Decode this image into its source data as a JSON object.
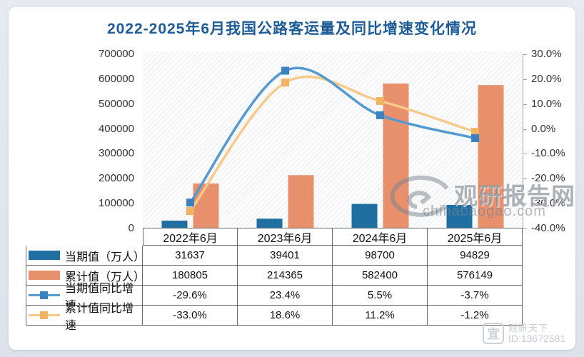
{
  "title": "2022-2025年6月我国公路客运量及同比增速变化情况",
  "colors": {
    "title": "#1d5b99",
    "bar_current": "#1f6fa3",
    "bar_cumulative": "#e8906c",
    "line_current": "#539ad3",
    "marker_current": "#3a82bd",
    "line_cumulative": "#f8ca8a",
    "marker_cumulative": "#f2b261",
    "axis": "#a6a6a6",
    "table_border": "#6a6a6a"
  },
  "chart_data": {
    "type": "combo-bar-line",
    "categories": [
      "2022年6月",
      "2023年6月",
      "2024年6月",
      "2025年6月"
    ],
    "bar_series": [
      {
        "name": "当期值（万人）",
        "values": [
          31637,
          39401,
          98700,
          94829
        ],
        "color": "#1f6fa3"
      },
      {
        "name": "累计值（万人）",
        "values": [
          180805,
          214365,
          582400,
          576149
        ],
        "color": "#e8906c"
      }
    ],
    "line_series": [
      {
        "name": "当期值同比增速",
        "values": [
          -29.6,
          23.4,
          5.5,
          -3.7
        ],
        "line_color": "#539ad3",
        "marker_color": "#3a82bd"
      },
      {
        "name": "累计值同比增速",
        "values": [
          -33.0,
          18.6,
          11.2,
          -1.2
        ],
        "line_color": "#f8ca8a",
        "marker_color": "#f2b261"
      }
    ],
    "left_axis": {
      "min": 0,
      "max": 700000,
      "ticks": [
        "700000",
        "600000",
        "500000",
        "400000",
        "300000",
        "200000",
        "100000",
        "0"
      ]
    },
    "right_axis": {
      "min": -40,
      "max": 30,
      "ticks": [
        "30.0%",
        "20.0%",
        "10.0%",
        "0.0%",
        "-10.0%",
        "-20.0%",
        "-30.0%",
        "-40.0%"
      ]
    },
    "grid": false,
    "legend_position": "table-left"
  },
  "table": {
    "rows": [
      {
        "swatch": "bar",
        "color": "#1f6fa3",
        "label": "当期值（万人）",
        "values": [
          "31637",
          "39401",
          "98700",
          "94829"
        ]
      },
      {
        "swatch": "bar",
        "color": "#e8906c",
        "label": "累计值（万人）",
        "values": [
          "180805",
          "214365",
          "582400",
          "576149"
        ]
      },
      {
        "swatch": "line",
        "line_color": "#539ad3",
        "marker_color": "#3a82bd",
        "label": "当期值同比增速",
        "values": [
          "-29.6%",
          "23.4%",
          "5.5%",
          "-3.7%"
        ]
      },
      {
        "swatch": "line",
        "line_color": "#f8ca8a",
        "marker_color": "#f2b261",
        "label": "累计值同比增速",
        "values": [
          "-33.0%",
          "18.6%",
          "11.2%",
          "-1.2%"
        ]
      }
    ]
  },
  "watermark": {
    "site_name": "观研报告网",
    "site_url": "chinabaogao.com"
  },
  "footer_watermark": {
    "icon_glyph": "宜",
    "name": "观研天下",
    "id": "ID:13672581"
  }
}
